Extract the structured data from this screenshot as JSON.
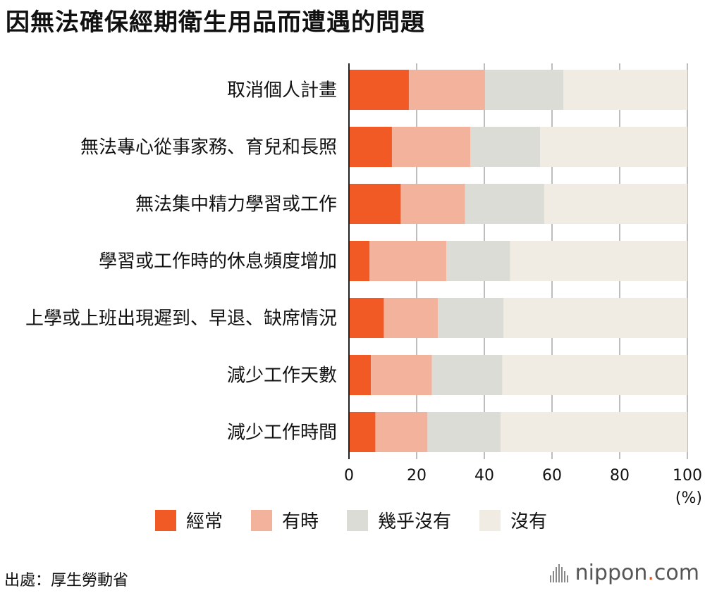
{
  "title": "因無法確保經期衛生用品而遭遇的問題",
  "chart_data": {
    "type": "bar",
    "orientation": "horizontal",
    "stacked": true,
    "categories": [
      "取消個人計畫",
      "無法專心從事家務、育兒和長照",
      "無法集中精力學習或工作",
      "學習或工作時的休息頻度增加",
      "上學或上班出現遲到、早退、缺席情況",
      "減少工作天數",
      "減少工作時間"
    ],
    "series": [
      {
        "name": "經常",
        "color": "#f15a24",
        "values": [
          17.7,
          12.7,
          15.3,
          6.1,
          10.3,
          6.5,
          7.8
        ]
      },
      {
        "name": "有時",
        "color": "#f2b29c",
        "values": [
          22.5,
          23.2,
          19.0,
          22.7,
          16.0,
          18.0,
          15.4
        ]
      },
      {
        "name": "幾乎沒有",
        "color": "#dcdcd6",
        "values": [
          23.2,
          20.6,
          23.4,
          18.8,
          19.4,
          20.8,
          21.6
        ]
      },
      {
        "name": "沒有",
        "color": "#f0ece3",
        "values": [
          36.6,
          43.5,
          42.3,
          52.4,
          54.3,
          54.7,
          55.2
        ]
      }
    ],
    "xlim": [
      0,
      100
    ],
    "xticks": [
      0,
      20,
      40,
      60,
      80,
      100
    ],
    "xunit": "(%)",
    "grid": true,
    "legend_position": "bottom"
  },
  "source": "出處：厚生勞動省",
  "brand": {
    "prefix": "nippon",
    "dot": ".",
    "suffix": "com"
  }
}
